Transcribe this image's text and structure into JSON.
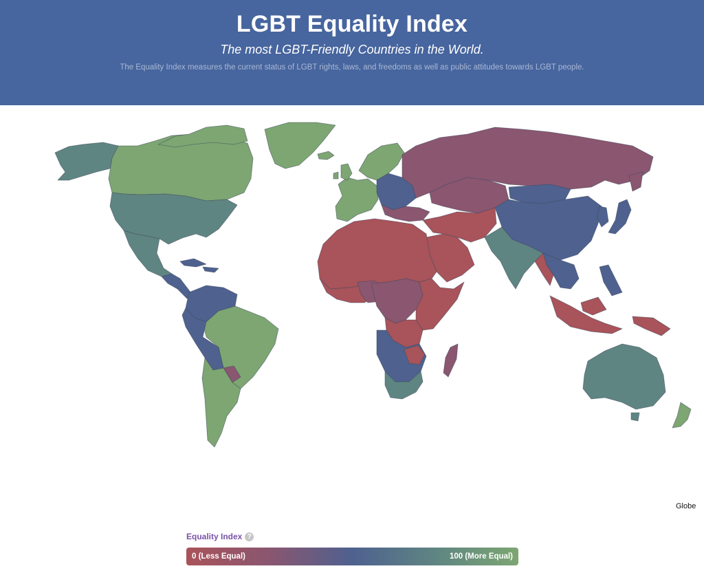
{
  "header": {
    "title": "LGBT Equality Index",
    "subtitle": "The most LGBT-Friendly Countries in the World.",
    "description": "The Equality Index measures the current status of LGBT rights, laws, and freedoms as well as public attitudes towards LGBT people."
  },
  "map": {
    "projection_link": "Globe",
    "colors": {
      "low": "#a9535a",
      "mid_low": "#8a5670",
      "mid": "#4e618f",
      "mid_high": "#5f8582",
      "high": "#7da672"
    }
  },
  "legend": {
    "title": "Equality Index",
    "help_icon": "question-mark-icon",
    "min_label": "0 (Less Equal)",
    "max_label": "100 (More Equal)",
    "gradient": [
      "#a9535a",
      "#8a5670",
      "#4e618f",
      "#5f8582",
      "#7da672"
    ]
  }
}
